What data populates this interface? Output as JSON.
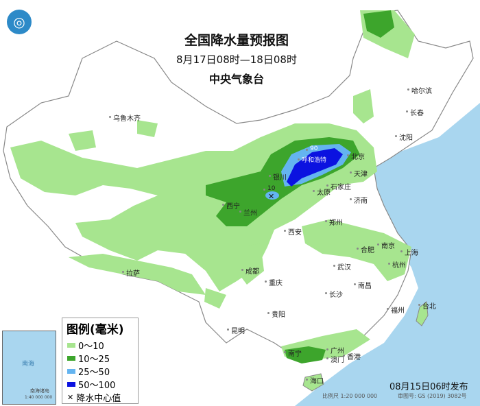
{
  "header": {
    "title": "全国降水量预报图",
    "period": "8月17日08时—18日08时",
    "issuer": "中央气象台"
  },
  "legend": {
    "title": "图例(毫米)",
    "items": [
      {
        "label": "0～10",
        "color": "#a7e58f"
      },
      {
        "label": "10～25",
        "color": "#3da52c"
      },
      {
        "label": "25～50",
        "color": "#64b4f0"
      },
      {
        "label": "50～100",
        "color": "#0b12e0"
      }
    ],
    "center_label": "降水中心值"
  },
  "centers": [
    {
      "value": "90"
    },
    {
      "value": "10"
    }
  ],
  "cities": [
    "乌鲁木齐",
    "哈尔滨",
    "长春",
    "沈阳",
    "北京",
    "天津",
    "石家庄",
    "太原",
    "济南",
    "呼和浩特",
    "银川",
    "兰州",
    "西宁",
    "郑州",
    "西安",
    "合肥",
    "南京",
    "上海",
    "杭州",
    "武汉",
    "成都",
    "重庆",
    "长沙",
    "南昌",
    "拉萨",
    "贵阳",
    "昆明",
    "福州",
    "台北",
    "南宁",
    "广州",
    "澳门",
    "香港",
    "海口"
  ],
  "inset": {
    "labels": [
      "南海",
      "南海诸岛",
      "1:40 000 000"
    ]
  },
  "footer": {
    "issued": "08月15日06时发布",
    "scale": "比例尺 1:20 000 000",
    "map_no": "审图号: GS (2019) 3082号"
  },
  "colors": {
    "sea": "#a9d6ef",
    "land": "#ffffff"
  }
}
